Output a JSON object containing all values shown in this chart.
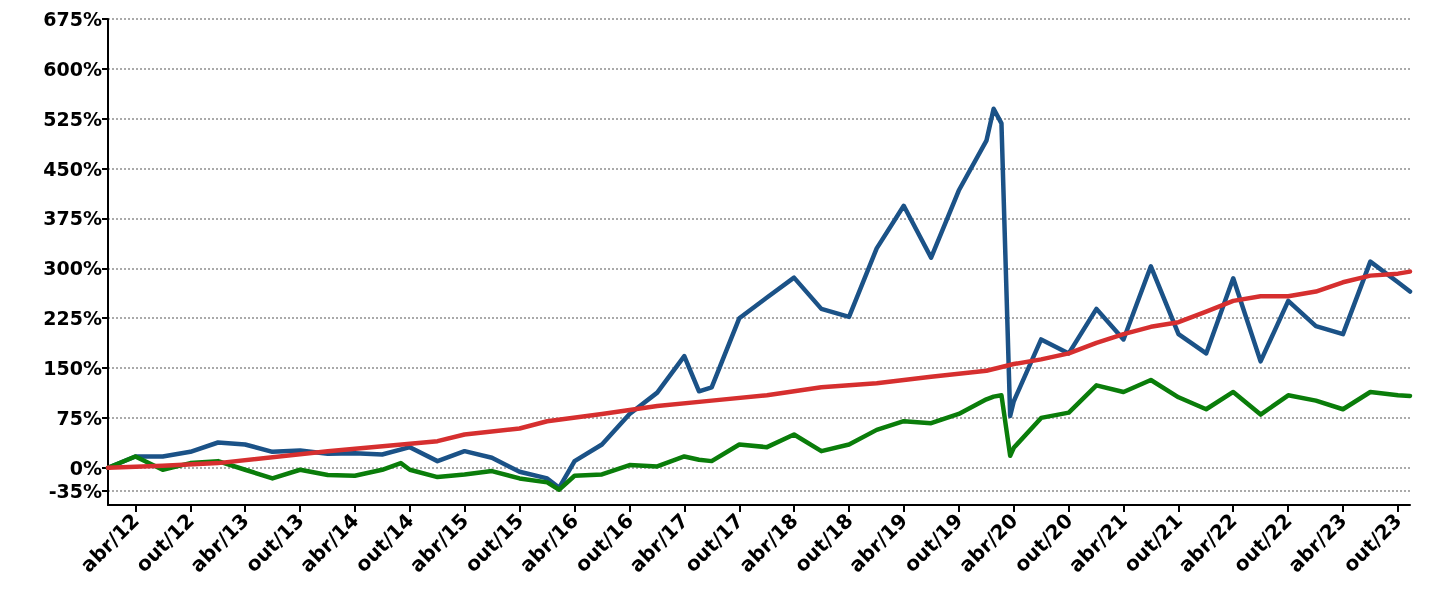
{
  "chart_data": {
    "type": "line",
    "xlim": [
      "2012-01-01",
      "2023-11-10"
    ],
    "xticks": [
      {
        "value": "2012-04",
        "label": "abr/12"
      },
      {
        "value": "2012-10",
        "label": "out/12"
      },
      {
        "value": "2013-04",
        "label": "abr/13"
      },
      {
        "value": "2013-10",
        "label": "out/13"
      },
      {
        "value": "2014-04",
        "label": "abr/14"
      },
      {
        "value": "2014-10",
        "label": "out/14"
      },
      {
        "value": "2015-04",
        "label": "abr/15"
      },
      {
        "value": "2015-10",
        "label": "out/15"
      },
      {
        "value": "2016-04",
        "label": "abr/16"
      },
      {
        "value": "2016-10",
        "label": "out/16"
      },
      {
        "value": "2017-04",
        "label": "abr/17"
      },
      {
        "value": "2017-10",
        "label": "out/17"
      },
      {
        "value": "2018-04",
        "label": "abr/18"
      },
      {
        "value": "2018-10",
        "label": "out/18"
      },
      {
        "value": "2019-04",
        "label": "abr/19"
      },
      {
        "value": "2019-10",
        "label": "out/19"
      },
      {
        "value": "2020-04",
        "label": "abr/20"
      },
      {
        "value": "2020-10",
        "label": "out/20"
      },
      {
        "value": "2021-04",
        "label": "abr/21"
      },
      {
        "value": "2021-10",
        "label": "out/21"
      },
      {
        "value": "2022-04",
        "label": "abr/22"
      },
      {
        "value": "2022-10",
        "label": "out/22"
      },
      {
        "value": "2023-04",
        "label": "abr/23"
      },
      {
        "value": "2023-10",
        "label": "out/23"
      }
    ],
    "ylim": [
      -56,
      675
    ],
    "yticks": [
      {
        "value": -35,
        "label": "-35%"
      },
      {
        "value": 0,
        "label": "0%"
      },
      {
        "value": 75,
        "label": "75%"
      },
      {
        "value": 150,
        "label": "150%"
      },
      {
        "value": 225,
        "label": "225%"
      },
      {
        "value": 300,
        "label": "300%"
      },
      {
        "value": 375,
        "label": "375%"
      },
      {
        "value": 450,
        "label": "450%"
      },
      {
        "value": 525,
        "label": "525%"
      },
      {
        "value": 600,
        "label": "600%"
      },
      {
        "value": 675,
        "label": "675%"
      }
    ],
    "grid": "y",
    "series": [
      {
        "color": "#1b5287",
        "x": [
          "2012-01",
          "2012-04",
          "2012-07",
          "2012-10",
          "2013-01",
          "2013-04",
          "2013-07",
          "2013-10",
          "2014-01",
          "2014-04",
          "2014-07",
          "2014-10",
          "2015-01",
          "2015-04",
          "2015-07",
          "2015-10",
          "2016-01",
          "2016-02-10",
          "2016-04",
          "2016-07",
          "2016-10",
          "2017-01",
          "2017-04",
          "2017-05-20",
          "2017-07",
          "2017-10",
          "2018-01",
          "2018-04",
          "2018-07",
          "2018-10",
          "2019-01",
          "2019-04",
          "2019-07",
          "2019-10",
          "2020-01",
          "2020-01-25",
          "2020-02-20",
          "2020-03-20",
          "2020-04",
          "2020-07",
          "2020-10",
          "2021-01",
          "2021-04",
          "2021-07",
          "2021-10",
          "2022-01",
          "2022-04",
          "2022-07",
          "2022-10",
          "2023-01",
          "2023-04",
          "2023-07",
          "2023-10",
          "2023-11-10"
        ],
        "values": [
          0,
          17,
          17,
          24,
          38,
          35,
          24,
          26,
          21,
          22,
          20,
          31,
          10,
          25,
          15,
          -6,
          -16,
          -30,
          10,
          35,
          81,
          113,
          168,
          115,
          121,
          225,
          256,
          286,
          239,
          227,
          330,
          394,
          316,
          417,
          492,
          540,
          518,
          78,
          100,
          193,
          172,
          239,
          193,
          303,
          201,
          172,
          285,
          160,
          251,
          213,
          201,
          310,
          279,
          265
        ]
      },
      {
        "color": "#0a7d0a",
        "x": [
          "2012-01",
          "2012-04",
          "2012-07",
          "2012-10",
          "2013-01",
          "2013-04",
          "2013-07",
          "2013-10",
          "2014-01",
          "2014-04",
          "2014-07",
          "2014-09",
          "2014-10",
          "2015-01",
          "2015-04",
          "2015-07",
          "2015-10",
          "2016-01",
          "2016-02-10",
          "2016-04",
          "2016-07",
          "2016-10",
          "2017-01",
          "2017-04",
          "2017-05-20",
          "2017-07",
          "2017-10",
          "2018-01",
          "2018-04",
          "2018-07",
          "2018-10",
          "2019-01",
          "2019-04",
          "2019-07",
          "2019-10",
          "2020-01",
          "2020-01-25",
          "2020-02-20",
          "2020-03-20",
          "2020-04",
          "2020-07",
          "2020-10",
          "2021-01",
          "2021-04",
          "2021-07",
          "2021-10",
          "2022-01",
          "2022-04",
          "2022-07",
          "2022-10",
          "2023-01",
          "2023-04",
          "2023-07",
          "2023-10",
          "2023-11-10"
        ],
        "values": [
          0,
          17,
          -3,
          7,
          10,
          -3,
          -16,
          -3,
          -11,
          -12,
          -3,
          7,
          -3,
          -14,
          -10,
          -5,
          -16,
          -22,
          -33,
          -12,
          -10,
          4,
          2,
          17,
          12,
          10,
          35,
          31,
          50,
          25,
          35,
          57,
          70,
          67,
          81,
          103,
          107,
          109,
          18,
          30,
          75,
          83,
          124,
          114,
          132,
          106,
          88,
          114,
          80,
          109,
          101,
          88,
          114,
          109,
          108
        ]
      },
      {
        "color": "#d62f2f",
        "x": [
          "2012-01",
          "2012-07",
          "2013-01",
          "2014-01",
          "2015-01",
          "2015-04",
          "2015-10",
          "2016-01",
          "2016-07",
          "2017-01",
          "2017-07",
          "2018-01",
          "2018-07",
          "2019-01",
          "2019-07",
          "2020-01",
          "2020-04",
          "2020-07",
          "2020-10",
          "2021-01",
          "2021-04",
          "2021-07",
          "2021-10",
          "2022-01",
          "2022-04",
          "2022-07",
          "2022-10",
          "2023-01",
          "2023-04",
          "2023-07",
          "2023-10",
          "2023-11-10"
        ],
        "values": [
          0,
          3,
          7,
          25,
          40,
          50,
          59,
          70,
          81,
          93,
          101,
          109,
          121,
          127,
          137,
          146,
          156,
          163,
          172,
          188,
          201,
          212,
          219,
          235,
          251,
          258,
          258,
          265,
          279,
          289,
          292,
          295
        ]
      }
    ]
  }
}
